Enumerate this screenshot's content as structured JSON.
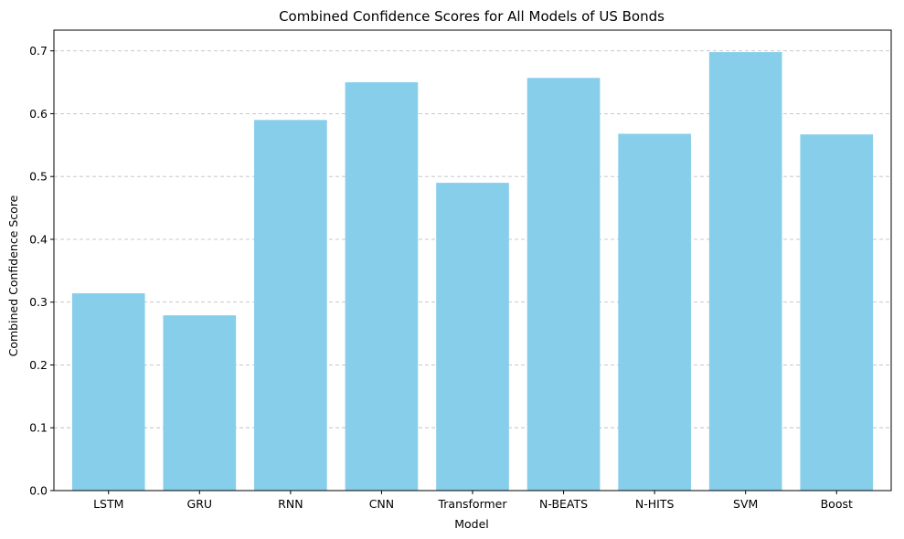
{
  "chart_data": {
    "type": "bar",
    "title": "Combined Confidence Scores for All Models of US Bonds",
    "xlabel": "Model",
    "ylabel": "Combined Confidence Score",
    "categories": [
      "LSTM",
      "GRU",
      "RNN",
      "CNN",
      "Transformer",
      "N-BEATS",
      "N-HITS",
      "SVM",
      "Boost"
    ],
    "values": [
      0.314,
      0.279,
      0.59,
      0.65,
      0.49,
      0.657,
      0.568,
      0.698,
      0.567
    ],
    "ylim": [
      0,
      0.733
    ],
    "yticks": [
      0.0,
      0.1,
      0.2,
      0.3,
      0.4,
      0.5,
      0.6,
      0.7
    ],
    "ytick_labels": [
      "0.0",
      "0.1",
      "0.2",
      "0.3",
      "0.4",
      "0.5",
      "0.6",
      "0.7"
    ],
    "grid": "y-dashed",
    "bar_color": "#87ceeb",
    "grid_color": "#c0c0c0"
  }
}
